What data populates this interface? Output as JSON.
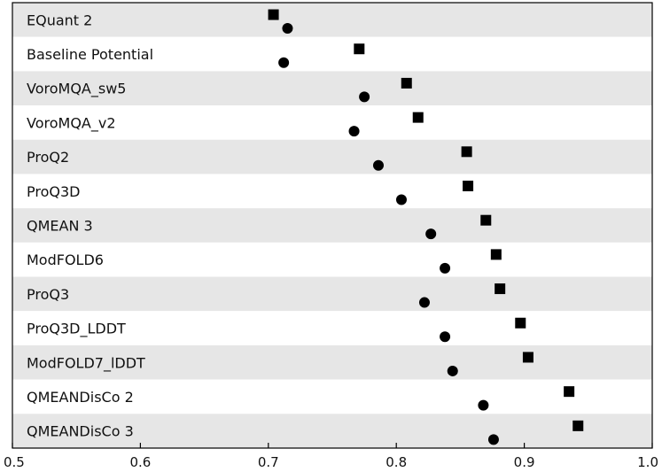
{
  "chart_data": {
    "type": "scatter",
    "title": "",
    "xlabel": "",
    "ylabel": "",
    "xlim": [
      0.5,
      1.0
    ],
    "xticks": [
      "0.5",
      "0.6",
      "0.7",
      "0.8",
      "0.9",
      "1.0"
    ],
    "xtick_values": [
      0.5,
      0.6,
      0.7,
      0.8,
      0.9,
      1.0
    ],
    "grid": false,
    "row_shading": [
      "#e6e6e6",
      "#ffffff"
    ],
    "categories": [
      "EQuant 2",
      "Baseline Potential",
      "VoroMQA_sw5",
      "VoroMQA_v2",
      "ProQ2",
      "ProQ3D",
      "QMEAN 3",
      "ModFOLD6",
      "ProQ3",
      "ProQ3D_LDDT",
      "ModFOLD7_lDDT",
      "QMEANDisCo 2",
      "QMEANDisCo 3"
    ],
    "series": [
      {
        "name": "square",
        "marker": "square",
        "values": [
          0.704,
          0.771,
          0.808,
          0.817,
          0.855,
          0.856,
          0.87,
          0.878,
          0.881,
          0.897,
          0.903,
          0.935,
          0.942
        ]
      },
      {
        "name": "circle",
        "marker": "circle",
        "values": [
          0.715,
          0.712,
          0.775,
          0.767,
          0.786,
          0.804,
          0.827,
          0.838,
          0.822,
          0.838,
          0.844,
          0.868,
          0.876
        ]
      }
    ]
  }
}
